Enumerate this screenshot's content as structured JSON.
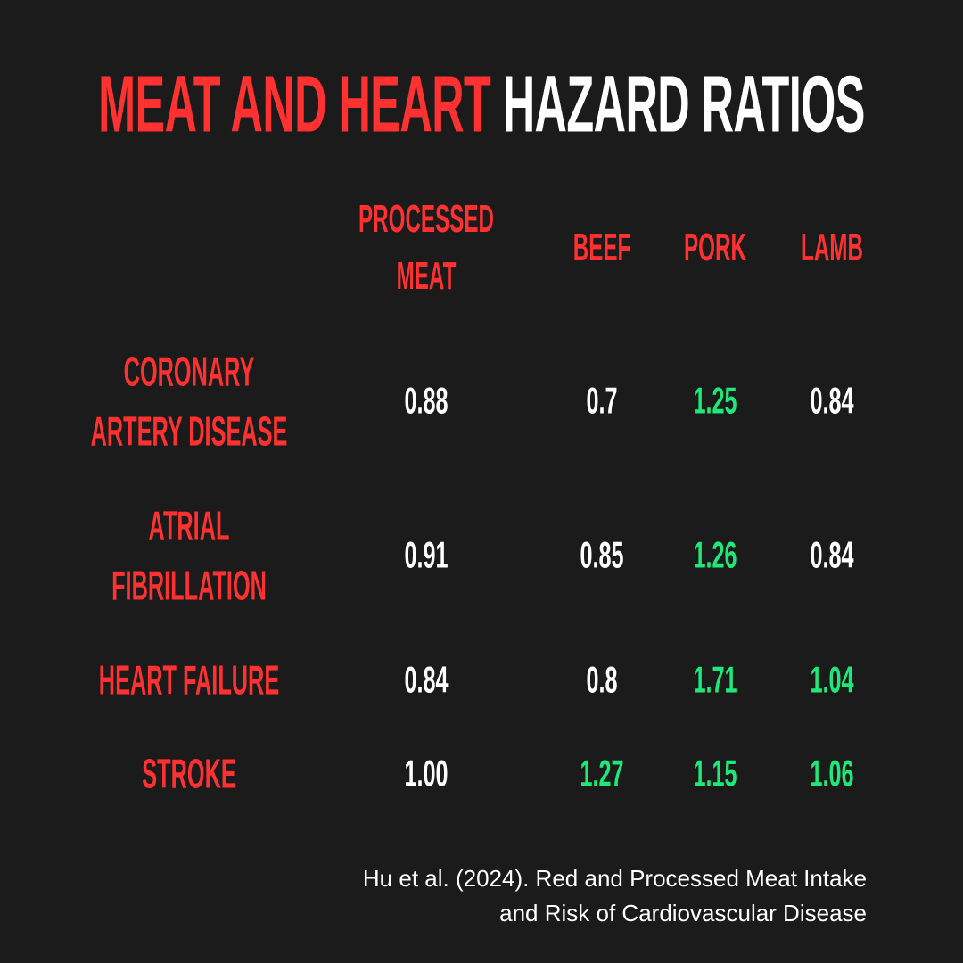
{
  "title": {
    "accent": "MEAT AND HEART",
    "rest": "HAZARD RATIOS"
  },
  "table": {
    "columns": [
      "PROCESSED MEAT",
      "BEEF",
      "PORK",
      "LAMB"
    ],
    "rows": [
      {
        "label": "CORONARY ARTERY DISEASE",
        "cells": [
          "0.88",
          "0.7",
          "1.25",
          "0.84"
        ],
        "highlight": [
          false,
          false,
          true,
          false
        ]
      },
      {
        "label": "ATRIAL FIBRILLATION",
        "cells": [
          "0.91",
          "0.85",
          "1.26",
          "0.84"
        ],
        "highlight": [
          false,
          false,
          true,
          false
        ]
      },
      {
        "label": "HEART FAILURE",
        "cells": [
          "0.84",
          "0.8",
          "1.71",
          "1.04"
        ],
        "highlight": [
          false,
          false,
          true,
          true
        ]
      },
      {
        "label": "STROKE",
        "cells": [
          "1.00",
          "1.27",
          "1.15",
          "1.06"
        ],
        "highlight": [
          false,
          true,
          true,
          true
        ]
      }
    ]
  },
  "citation": [
    "Hu et al. (2024). Red and Processed Meat Intake",
    "and Risk of Cardiovascular Disease"
  ],
  "colors": {
    "background": "#1b1b1b",
    "accent": "#ff3131",
    "value": "#ffffff",
    "highlight": "#1ee87a"
  }
}
